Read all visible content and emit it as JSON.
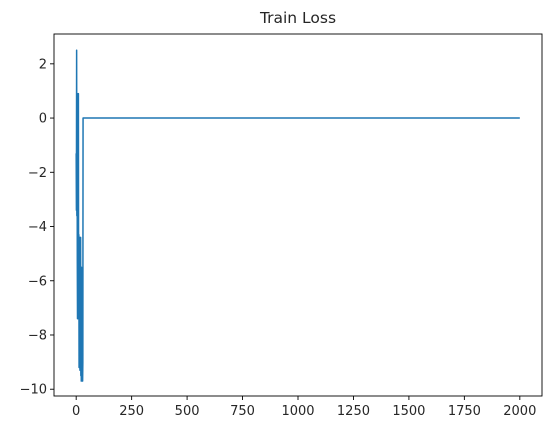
{
  "chart_data": {
    "type": "line",
    "title": "Train Loss",
    "xlabel": "",
    "ylabel": "",
    "xlim": [
      -100,
      2100
    ],
    "ylim": [
      -10.25,
      3.1
    ],
    "grid": false,
    "legend": "none",
    "x_ticks": [
      0,
      250,
      500,
      750,
      1000,
      1250,
      1500,
      1750,
      2000
    ],
    "x_tick_labels": [
      "0",
      "250",
      "500",
      "750",
      "1000",
      "1250",
      "1500",
      "1750",
      "2000"
    ],
    "y_ticks": [
      2,
      0,
      -2,
      -4,
      -6,
      -8,
      -10
    ],
    "y_tick_labels": [
      "2",
      "0",
      "−2",
      "−4",
      "−6",
      "−8",
      "−10"
    ],
    "series": [
      {
        "color": "#1f77b4",
        "x": [
          0,
          1,
          2,
          3,
          4,
          5,
          6,
          7,
          8,
          9,
          10,
          11,
          12,
          13,
          14,
          15,
          16,
          17,
          18,
          19,
          20,
          21,
          22,
          23,
          24,
          25,
          26,
          27,
          28,
          29,
          30,
          31,
          2000
        ],
        "y": [
          -1.3,
          -3.4,
          2.5,
          -3.6,
          0.6,
          -5.2,
          -7.4,
          -6.6,
          0.9,
          -6.3,
          0.9,
          -7.4,
          -4.3,
          -9.2,
          -6.0,
          -8.6,
          -4.4,
          -9.3,
          -5.8,
          -8.8,
          -4.4,
          -9.5,
          -6.1,
          -9.7,
          -5.5,
          -9.6,
          -7.3,
          -9.6,
          -8.6,
          -9.7,
          -9.0,
          0.0,
          0.0
        ]
      }
    ]
  }
}
